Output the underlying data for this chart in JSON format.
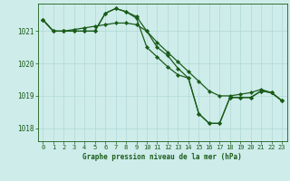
{
  "title": "Graphe pression niveau de la mer (hPa)",
  "bg_color": "#ceecea",
  "grid_color": "#b0d8d4",
  "line_color": "#1a5c1a",
  "marker_color": "#1a5c1a",
  "ylim": [
    1017.6,
    1021.85
  ],
  "xlim": [
    -0.5,
    23.5
  ],
  "yticks": [
    1018,
    1019,
    1020,
    1021
  ],
  "xticks": [
    0,
    1,
    2,
    3,
    4,
    5,
    6,
    7,
    8,
    9,
    10,
    11,
    12,
    13,
    14,
    15,
    16,
    17,
    18,
    19,
    20,
    21,
    22,
    23
  ],
  "series1": [
    1021.35,
    1021.0,
    1021.0,
    1021.0,
    1021.0,
    1021.0,
    1021.55,
    1021.7,
    1021.6,
    1021.45,
    1021.0,
    1020.5,
    1020.25,
    1019.85,
    1019.55,
    1018.45,
    1018.15,
    1018.15,
    1018.95,
    1018.95,
    1018.95,
    1019.15,
    1019.1,
    1018.85
  ],
  "series2": [
    1021.35,
    1021.0,
    1021.0,
    1021.05,
    1021.1,
    1021.15,
    1021.2,
    1021.25,
    1021.25,
    1021.2,
    1021.0,
    1020.65,
    1020.35,
    1020.05,
    1019.75,
    1019.45,
    1019.15,
    1019.0,
    1019.0,
    1019.05,
    1019.1,
    1019.2,
    1019.1,
    1018.85
  ],
  "series3": [
    1021.35,
    1021.0,
    1021.0,
    1021.0,
    1021.0,
    1021.0,
    1021.55,
    1021.7,
    1021.6,
    1021.4,
    1020.5,
    1020.2,
    1019.9,
    1019.65,
    1019.55,
    1018.45,
    1018.15,
    1018.15,
    1018.95,
    1018.95,
    1018.95,
    1019.15,
    1019.1,
    1018.85
  ]
}
